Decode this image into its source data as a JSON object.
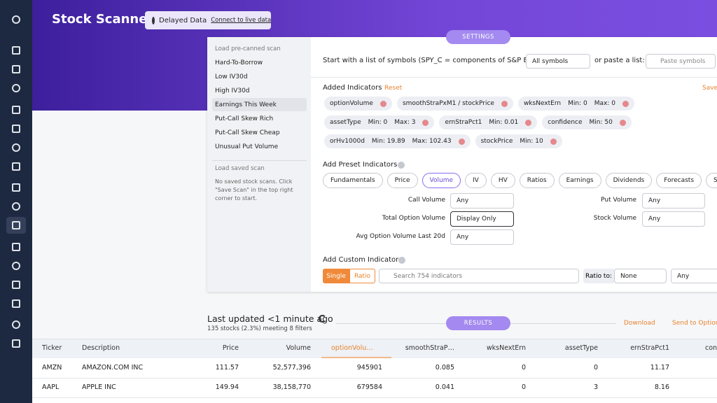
{
  "header": {
    "title": "Stock Scanner",
    "badge": "Delayed Data",
    "link": "Connect to live data"
  },
  "settings_tab": "SETTINGS",
  "sidebar": {
    "heading": "Load pre-canned scan",
    "items": [
      "Hard-To-Borrow",
      "Low IV30d",
      "High IV30d",
      "Earnings This Week",
      "Put-Call Skew Rich",
      "Put-Call Skew Cheap",
      "Unusual Put Volume"
    ],
    "saved_heading": "Load saved scan",
    "saved_note": [
      "No saved stock scans. Click",
      "\"Save Scan\" in the top right",
      "corner to start."
    ]
  },
  "symbols": {
    "label": "Start with a list of symbols (SPY_C = components of S&P ETF):",
    "select": "All symbols",
    "or_label": "or paste a list:",
    "placeholder": "Paste symbols"
  },
  "added": {
    "title": "Added Indicators",
    "reset": "Reset",
    "save": "Save",
    "rows": [
      [
        {
          "name": "optionVolume"
        },
        {
          "name": "smoothStraPxM1 / stockPrice"
        },
        {
          "name": "wksNextErn",
          "min": "Min: 0",
          "max": "Max: 0"
        }
      ],
      [
        {
          "name": "assetType",
          "min": "Min: 0",
          "max": "Max: 3"
        },
        {
          "name": "ernStraPct1",
          "min": "Min: 0.01"
        },
        {
          "name": "confidence",
          "min": "Min: 50"
        }
      ],
      [
        {
          "name": "orHv1000d",
          "min": "Min: 19.89",
          "max": "Max: 102.43"
        },
        {
          "name": "stockPrice",
          "min": "Min: 10"
        }
      ]
    ]
  },
  "preset": {
    "title": "Add Preset Indicators",
    "tabs": [
      "Fundamentals",
      "Price",
      "Volume",
      "IV",
      "HV",
      "Ratios",
      "Earnings",
      "Dividends",
      "Forecasts",
      "Skew"
    ],
    "left_fields": [
      {
        "label": "Call Volume",
        "value": "Any"
      },
      {
        "label": "Total Option Volume",
        "value": "Display Only"
      },
      {
        "label": "Avg Option Volume Last 20d",
        "value": "Any"
      }
    ],
    "right_fields": [
      {
        "label": "Put Volume",
        "value": "Any"
      },
      {
        "label": "Stock Volume",
        "value": "Any"
      }
    ]
  },
  "custom": {
    "title": "Add Custom Indicator",
    "toggle": [
      "Single",
      "Ratio"
    ],
    "placeholder": "Search 754 indicators",
    "ratio_label": "Ratio to:",
    "ratio_value": "None",
    "any": "Any"
  },
  "results": {
    "updated": "Last updated <1 minute ago",
    "summary": "135 stocks (2.3%) meeting 8 filters",
    "tab": "RESULTS",
    "download": "Download",
    "send": "Send to Option"
  },
  "table": {
    "columns": [
      "Ticker",
      "Description",
      "Price",
      "Volume",
      "optionVolu…",
      "smoothStraP…",
      "wksNextErn",
      "assetType",
      "ernStraPct1",
      "con"
    ],
    "rows": [
      [
        "AMZN",
        "AMAZON.COM INC",
        "111.57",
        "52,577,396",
        "945901",
        "0.085",
        "0",
        "0",
        "11.17"
      ],
      [
        "AAPL",
        "APPLE INC",
        "149.94",
        "38,158,770",
        "679584",
        "0.041",
        "0",
        "3",
        "8.16"
      ]
    ]
  }
}
